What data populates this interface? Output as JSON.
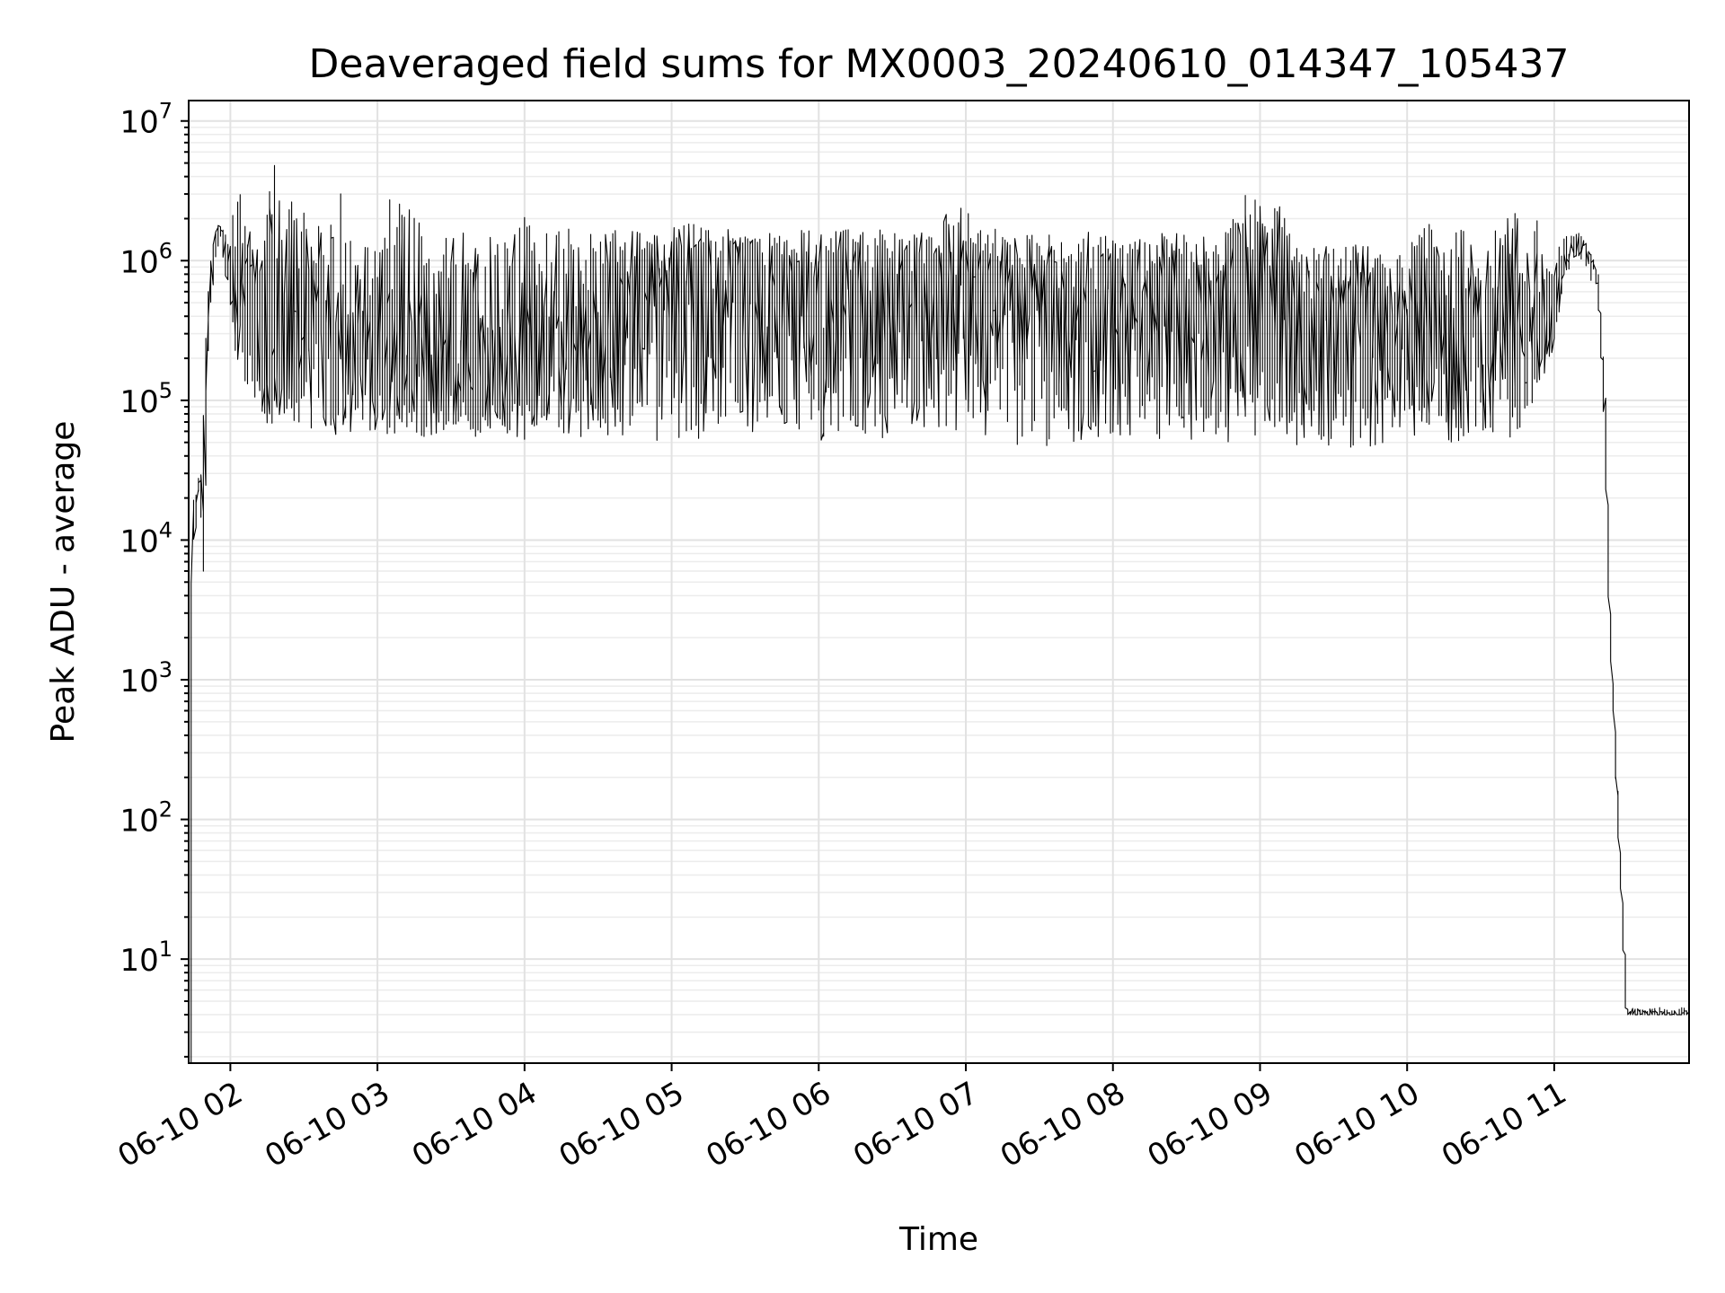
{
  "chart_data": {
    "type": "line",
    "title": "Deaveraged field sums for MX0003_20240610_014347_105437",
    "xlabel": "Time",
    "ylabel": "Peak ADU - average",
    "yscale": "log",
    "ylim": [
      1.8,
      14000000
    ],
    "xlim": [
      "2024-06-10 01:43",
      "2024-06-10 11:55"
    ],
    "grid": true,
    "line_color": "#000000",
    "x_ticks": [
      {
        "value": "2024-06-10 02:00",
        "label": "06-10 02"
      },
      {
        "value": "2024-06-10 03:00",
        "label": "06-10 03"
      },
      {
        "value": "2024-06-10 04:00",
        "label": "06-10 04"
      },
      {
        "value": "2024-06-10 05:00",
        "label": "06-10 05"
      },
      {
        "value": "2024-06-10 06:00",
        "label": "06-10 06"
      },
      {
        "value": "2024-06-10 07:00",
        "label": "06-10 07"
      },
      {
        "value": "2024-06-10 08:00",
        "label": "06-10 08"
      },
      {
        "value": "2024-06-10 09:00",
        "label": "06-10 09"
      },
      {
        "value": "2024-06-10 10:00",
        "label": "06-10 10"
      },
      {
        "value": "2024-06-10 11:00",
        "label": "06-10 11"
      }
    ],
    "y_ticks": [
      {
        "value": 10,
        "base": "10",
        "exp": "1"
      },
      {
        "value": 100,
        "base": "10",
        "exp": "2"
      },
      {
        "value": 1000,
        "base": "10",
        "exp": "3"
      },
      {
        "value": 10000,
        "base": "10",
        "exp": "4"
      },
      {
        "value": 100000,
        "base": "10",
        "exp": "5"
      },
      {
        "value": 1000000,
        "base": "10",
        "exp": "6"
      },
      {
        "value": 10000000,
        "base": "10",
        "exp": "7"
      }
    ],
    "series": [
      {
        "x": [
          "2024-06-10 01:44",
          "2024-06-10 01:45",
          "2024-06-10 01:46",
          "2024-06-10 01:47",
          "2024-06-10 01:48",
          "2024-06-10 01:49",
          "2024-06-10 01:50",
          "2024-06-10 01:52",
          "2024-06-10 01:54",
          "2024-06-10 01:56",
          "2024-06-10 01:58",
          "2024-06-10 02:00",
          "2024-06-10 02:03",
          "2024-06-10 02:06",
          "2024-06-10 02:10",
          "2024-06-10 02:15",
          "2024-06-10 02:20",
          "2024-06-10 02:25",
          "2024-06-10 02:30",
          "2024-06-10 02:35",
          "2024-06-10 02:40",
          "2024-06-10 02:45",
          "2024-06-10 02:50",
          "2024-06-10 02:55",
          "2024-06-10 03:00",
          "2024-06-10 03:10",
          "2024-06-10 03:20",
          "2024-06-10 03:30",
          "2024-06-10 03:40",
          "2024-06-10 03:50",
          "2024-06-10 04:00",
          "2024-06-10 04:10",
          "2024-06-10 04:20",
          "2024-06-10 04:30",
          "2024-06-10 04:40",
          "2024-06-10 04:50",
          "2024-06-10 05:00",
          "2024-06-10 05:15",
          "2024-06-10 05:30",
          "2024-06-10 05:45",
          "2024-06-10 06:00",
          "2024-06-10 06:15",
          "2024-06-10 06:30",
          "2024-06-10 06:45",
          "2024-06-10 07:00",
          "2024-06-10 07:15",
          "2024-06-10 07:30",
          "2024-06-10 07:45",
          "2024-06-10 08:00",
          "2024-06-10 08:15",
          "2024-06-10 08:30",
          "2024-06-10 08:45",
          "2024-06-10 09:00",
          "2024-06-10 09:15",
          "2024-06-10 09:30",
          "2024-06-10 09:45",
          "2024-06-10 10:00",
          "2024-06-10 10:15",
          "2024-06-10 10:30",
          "2024-06-10 10:45",
          "2024-06-10 11:00",
          "2024-06-10 11:05",
          "2024-06-10 11:10",
          "2024-06-10 11:14",
          "2024-06-10 11:18",
          "2024-06-10 11:21",
          "2024-06-10 11:23",
          "2024-06-10 11:25",
          "2024-06-10 11:30",
          "2024-06-10 11:40",
          "2024-06-10 11:50",
          "2024-06-10 11:55"
        ],
        "y": [
          2.0,
          20000,
          12000,
          25000,
          28000,
          4000,
          30000,
          500000,
          1200000,
          1700000,
          1500000,
          900000,
          600000,
          500000,
          400000,
          300000,
          250000,
          300000,
          350000,
          300000,
          280000,
          250000,
          250000,
          220000,
          200000,
          180000,
          160000,
          150000,
          140000,
          130000,
          150000,
          200000,
          300000,
          400000,
          450000,
          500000,
          600000,
          600000,
          650000,
          650000,
          700000,
          700000,
          700000,
          700000,
          650000,
          600000,
          550000,
          550000,
          550000,
          520000,
          500000,
          480000,
          450000,
          400000,
          380000,
          360000,
          350000,
          340000,
          330000,
          350000,
          400000,
          1000000,
          1400000,
          1200000,
          800000,
          100000,
          3000,
          500,
          4.0,
          4.0,
          4.0,
          4.0
        ],
        "range_high": [
          2.0,
          25000,
          20000,
          28000,
          30000,
          30000,
          200000,
          1000000,
          1800000,
          1800000,
          1700000,
          1500000,
          3100000,
          3000000,
          1500000,
          2500000,
          7000000,
          5500000,
          2500000,
          3000000,
          1500000,
          3500000,
          2500000,
          1500000,
          1600000,
          4500000,
          1500000,
          1600000,
          1600000,
          1600000,
          2200000,
          1600000,
          1700000,
          1600000,
          1700000,
          1700000,
          2200000,
          1700000,
          1700000,
          1700000,
          1650000,
          1700000,
          1700000,
          1700000,
          2800000,
          1700000,
          1600000,
          1600000,
          1600000,
          1600000,
          1600000,
          1500000,
          4500000,
          1500000,
          1300000,
          1300000,
          1300000,
          2600000,
          1300000,
          3000000,
          1500000,
          1600000,
          1600000,
          1300000,
          900000,
          120000,
          3500,
          600,
          4.5,
          4.5,
          4.5,
          4.5
        ],
        "range_low": [
          2.0,
          15000,
          8000,
          20000,
          25000,
          3800,
          20000,
          300000,
          800000,
          1400000,
          1000000,
          500000,
          150000,
          120000,
          80000,
          60000,
          70000,
          60000,
          60000,
          60000,
          55000,
          50000,
          55000,
          60000,
          60000,
          55000,
          55000,
          60000,
          55000,
          55000,
          50000,
          55000,
          55000,
          55000,
          55000,
          50000,
          50000,
          50000,
          50000,
          50000,
          50000,
          50000,
          50000,
          55000,
          55000,
          50000,
          45000,
          50000,
          50000,
          50000,
          50000,
          50000,
          50000,
          45000,
          45000,
          45000,
          50000,
          50000,
          50000,
          50000,
          200000,
          800000,
          1100000,
          900000,
          500000,
          60000,
          2500,
          400,
          4.0,
          4.0,
          4.0,
          4.0
        ]
      }
    ]
  }
}
